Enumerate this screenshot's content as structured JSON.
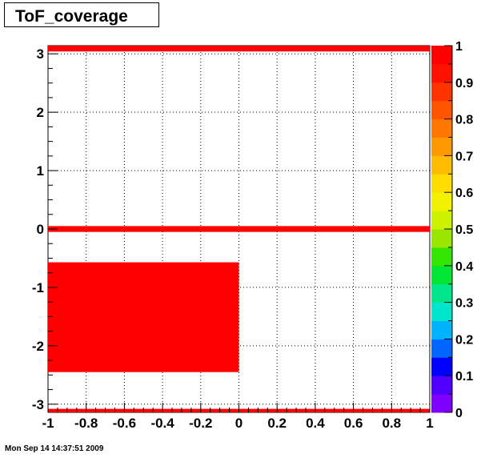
{
  "title": "ToF_coverage",
  "timestamp": "Mon Sep 14  14:37:51 2009",
  "chart_data": {
    "type": "heatmap",
    "title": "ToF_coverage",
    "xlabel": "",
    "ylabel": "",
    "xlim": [
      -1,
      1
    ],
    "ylim": [
      -3.14,
      3.14
    ],
    "zlim": [
      0,
      1
    ],
    "grid": true,
    "x_ticks": [
      "-1",
      "-0.8",
      "-0.6",
      "-0.4",
      "-0.2",
      "0",
      "0.2",
      "0.4",
      "0.6",
      "0.8",
      "1"
    ],
    "y_ticks": [
      "-3",
      "-2",
      "-1",
      "0",
      "1",
      "2",
      "3"
    ],
    "z_ticks": [
      "0",
      "0.1",
      "0.2",
      "0.3",
      "0.4",
      "0.5",
      "0.6",
      "0.7",
      "0.8",
      "0.9",
      "1"
    ],
    "cells": [
      {
        "x0": -1,
        "x1": 1,
        "y0": 3.04,
        "y1": 3.14,
        "z": 1
      },
      {
        "x0": -1,
        "x1": 1,
        "y0": -0.05,
        "y1": 0.05,
        "z": 1
      },
      {
        "x0": -1,
        "x1": 0,
        "y0": -2.45,
        "y1": -0.57,
        "z": 1
      },
      {
        "x0": -1,
        "x1": 1,
        "y0": -3.14,
        "y1": -3.08,
        "z": 1
      }
    ],
    "palette": [
      "#7f00ff",
      "#5100ff",
      "#0000ff",
      "#0066ff",
      "#00b3ff",
      "#00e6cc",
      "#00e68c",
      "#00e633",
      "#33e600",
      "#99e600",
      "#ccf200",
      "#f2f200",
      "#ffdd00",
      "#ffbb00",
      "#ff9900",
      "#ff7700",
      "#ff5500",
      "#ff3300",
      "#ff1100",
      "#ff0000"
    ]
  }
}
